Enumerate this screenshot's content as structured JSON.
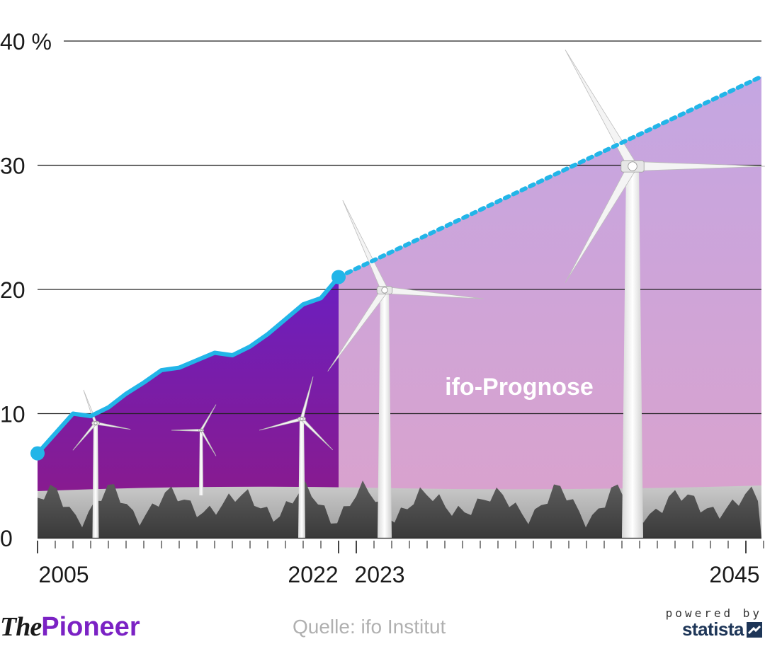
{
  "chart_data": {
    "type": "line",
    "y_unit_label": "40 %",
    "ylim": [
      0,
      40
    ],
    "y_ticks": [
      0,
      10,
      20,
      30,
      40
    ],
    "y_tick_labels": [
      "0",
      "10",
      "20",
      "30",
      "40 %"
    ],
    "x_ticks_labeled": [
      "2005",
      "2022",
      "2023",
      "2045"
    ],
    "grid": true,
    "annotation": "ifo-Prognose",
    "series": [
      {
        "style": "solid",
        "color": "#22b5e8",
        "points": [
          {
            "x": 2004.0,
            "y": 6.8
          },
          {
            "x": 2006.0,
            "y": 10.0
          },
          {
            "x": 2007.0,
            "y": 9.8
          },
          {
            "x": 2008.0,
            "y": 10.5
          },
          {
            "x": 2009.0,
            "y": 11.6
          },
          {
            "x": 2010.0,
            "y": 12.5
          },
          {
            "x": 2011.0,
            "y": 13.5
          },
          {
            "x": 2012.0,
            "y": 13.7
          },
          {
            "x": 2013.0,
            "y": 14.3
          },
          {
            "x": 2014.0,
            "y": 14.9
          },
          {
            "x": 2015.0,
            "y": 14.7
          },
          {
            "x": 2016.0,
            "y": 15.4
          },
          {
            "x": 2017.0,
            "y": 16.4
          },
          {
            "x": 2018.0,
            "y": 17.6
          },
          {
            "x": 2019.0,
            "y": 18.8
          },
          {
            "x": 2020.0,
            "y": 19.3
          },
          {
            "x": 2021.0,
            "y": 21.0
          }
        ]
      },
      {
        "style": "dotted",
        "color": "#22b5e8",
        "points": [
          {
            "x": 2021.0,
            "y": 21.0
          },
          {
            "x": 2046.0,
            "y": 37.9
          }
        ]
      }
    ]
  },
  "colors": {
    "history_fill_top": "#6b1fc0",
    "history_fill_bottom": "#8e1a85",
    "forecast_fill_top": "#c4a6e2",
    "forecast_fill_bottom": "#d9a3cf",
    "line": "#22b5e8",
    "brand_purple": "#7b22c4",
    "statista_navy": "#1d3557"
  },
  "footer": {
    "brand_the": "The",
    "brand_pioneer": "Pioneer",
    "source": "Quelle: ifo Institut",
    "powered_by": "powered by",
    "statista": "statista"
  }
}
